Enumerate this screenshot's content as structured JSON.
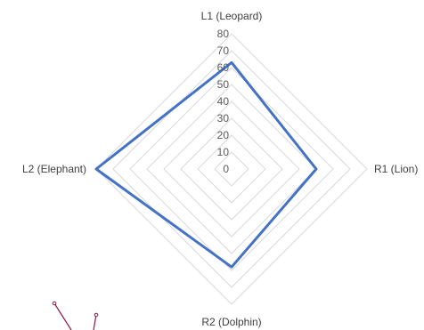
{
  "chart_data": {
    "type": "radar",
    "axes": [
      "L1 (Leopard)",
      "R1 (Lion)",
      "R2 (Dolphin)",
      "L2 (Elephant)"
    ],
    "series": [
      {
        "values": [
          63,
          50,
          58,
          80
        ]
      }
    ],
    "rlim": [
      0,
      80
    ],
    "ticks": [
      "0",
      "10",
      "20",
      "30",
      "40",
      "50",
      "60",
      "70",
      "80"
    ],
    "grid": true,
    "legend": "none",
    "colors": {
      "series": "#4472C4",
      "grid": "#D9D9D9",
      "text": "#404040"
    }
  }
}
